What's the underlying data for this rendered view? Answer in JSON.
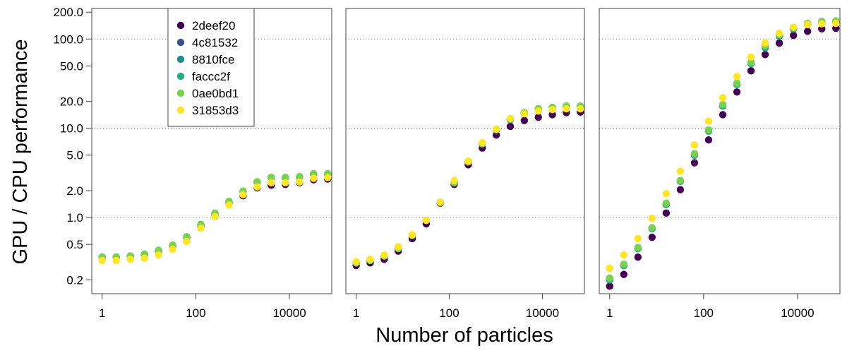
{
  "chart_data": {
    "type": "scatter",
    "ylabel": "GPU / CPU performance",
    "xlabel": "Number of particles",
    "x_scale": "log",
    "y_scale": "log",
    "xlim": [
      0.6,
      80000
    ],
    "ylim": [
      0.14,
      220
    ],
    "x_ticks": [
      1,
      100,
      10000
    ],
    "x_tick_labels": [
      "1",
      "100",
      "10000"
    ],
    "y_ticks": [
      0.2,
      0.5,
      1,
      2,
      5,
      10,
      20,
      50,
      100,
      200
    ],
    "y_tick_labels": [
      "0.2",
      "0.5",
      "1.0",
      "2.0",
      "5.0",
      "10.0",
      "20.0",
      "50.0",
      "100.0",
      "200.0"
    ],
    "reference_lines_y": [
      1,
      10,
      100
    ],
    "grid": false,
    "legend_position": "top (first panel)",
    "x": [
      1,
      2,
      4,
      8,
      16,
      32,
      64,
      128,
      256,
      512,
      1024,
      2048,
      4096,
      8192,
      16384,
      32768,
      65536
    ],
    "series_meta": [
      {
        "name": "2deef20",
        "color": "#440154"
      },
      {
        "name": "4c81532",
        "color": "#3b528b"
      },
      {
        "name": "8810fce",
        "color": "#21908d"
      },
      {
        "name": "faccc2f",
        "color": "#27ad81"
      },
      {
        "name": "0ae0bd1",
        "color": "#7ad151"
      },
      {
        "name": "31853d3",
        "color": "#fde725"
      }
    ],
    "panels": [
      {
        "series": [
          {
            "name": "2deef20",
            "values": [
              0.36,
              0.36,
              0.37,
              0.38,
              0.42,
              0.48,
              0.6,
              0.8,
              1.05,
              1.45,
              1.75,
              2.15,
              2.3,
              2.35,
              2.45,
              2.65,
              2.7
            ]
          },
          {
            "name": "4c81532",
            "values": [
              0.36,
              0.36,
              0.37,
              0.38,
              0.42,
              0.48,
              0.6,
              0.82,
              1.1,
              1.5,
              1.95,
              2.5,
              2.8,
              2.8,
              2.85,
              3.05,
              3.05
            ]
          },
          {
            "name": "8810fce",
            "values": [
              0.36,
              0.36,
              0.37,
              0.38,
              0.42,
              0.48,
              0.6,
              0.82,
              1.1,
              1.5,
              1.95,
              2.5,
              2.8,
              2.8,
              2.85,
              3.05,
              3.05
            ]
          },
          {
            "name": "faccc2f",
            "values": [
              0.36,
              0.36,
              0.37,
              0.38,
              0.42,
              0.48,
              0.6,
              0.82,
              1.1,
              1.5,
              1.95,
              2.5,
              2.8,
              2.8,
              2.85,
              3.05,
              3.05
            ]
          },
          {
            "name": "0ae0bd1",
            "values": [
              0.36,
              0.36,
              0.37,
              0.39,
              0.43,
              0.49,
              0.61,
              0.84,
              1.12,
              1.52,
              1.98,
              2.52,
              2.82,
              2.82,
              2.88,
              3.1,
              3.1
            ]
          },
          {
            "name": "31853d3",
            "values": [
              0.33,
              0.33,
              0.34,
              0.35,
              0.38,
              0.44,
              0.54,
              0.76,
              1.02,
              1.38,
              1.8,
              2.2,
              2.45,
              2.45,
              2.5,
              2.75,
              2.8
            ]
          }
        ]
      },
      {
        "series": [
          {
            "name": "2deef20",
            "values": [
              0.29,
              0.31,
              0.34,
              0.42,
              0.58,
              0.85,
              1.45,
              2.35,
              3.9,
              6.0,
              8.4,
              10.5,
              12.2,
              13.3,
              14.2,
              15.0,
              15.2
            ]
          },
          {
            "name": "4c81532",
            "values": [
              0.31,
              0.33,
              0.37,
              0.45,
              0.63,
              0.93,
              1.48,
              2.45,
              4.2,
              6.7,
              9.6,
              12.5,
              14.8,
              16.3,
              17.0,
              17.5,
              17.5
            ]
          },
          {
            "name": "8810fce",
            "values": [
              0.31,
              0.33,
              0.37,
              0.45,
              0.63,
              0.93,
              1.48,
              2.45,
              4.2,
              6.7,
              9.6,
              12.5,
              14.8,
              16.3,
              17.0,
              17.5,
              17.5
            ]
          },
          {
            "name": "faccc2f",
            "values": [
              0.31,
              0.33,
              0.37,
              0.45,
              0.63,
              0.93,
              1.48,
              2.45,
              4.2,
              6.7,
              9.6,
              12.5,
              14.8,
              16.3,
              17.0,
              17.5,
              17.5
            ]
          },
          {
            "name": "0ae0bd1",
            "values": [
              0.31,
              0.33,
              0.37,
              0.45,
              0.63,
              0.93,
              1.48,
              2.45,
              4.2,
              6.7,
              9.6,
              12.8,
              15.0,
              16.6,
              17.2,
              17.8,
              17.8
            ]
          },
          {
            "name": "31853d3",
            "values": [
              0.32,
              0.34,
              0.38,
              0.47,
              0.64,
              0.93,
              1.48,
              2.6,
              4.3,
              6.9,
              9.8,
              12.8,
              14.5,
              15.6,
              16.2,
              16.5,
              16.5
            ]
          }
        ]
      },
      {
        "series": [
          {
            "name": "2deef20",
            "values": [
              0.17,
              0.23,
              0.36,
              0.6,
              1.12,
              2.05,
              4.1,
              7.4,
              14.2,
              25.5,
              44.0,
              67.0,
              90.0,
              110.0,
              122.0,
              130.0,
              132.0
            ]
          },
          {
            "name": "4c81532",
            "values": [
              0.2,
              0.29,
              0.45,
              0.75,
              1.4,
              2.55,
              5.0,
              9.3,
              17.8,
              31.0,
              53.0,
              80.0,
              108.0,
              130.0,
              145.0,
              152.0,
              155.0
            ]
          },
          {
            "name": "8810fce",
            "values": [
              0.2,
              0.29,
              0.45,
              0.75,
              1.4,
              2.55,
              5.0,
              9.3,
              17.8,
              31.0,
              53.0,
              80.0,
              108.0,
              130.0,
              145.0,
              152.0,
              155.0
            ]
          },
          {
            "name": "faccc2f",
            "values": [
              0.2,
              0.29,
              0.45,
              0.75,
              1.4,
              2.55,
              5.0,
              9.3,
              17.8,
              31.0,
              53.0,
              80.0,
              108.0,
              130.0,
              145.0,
              152.0,
              155.0
            ]
          },
          {
            "name": "0ae0bd1",
            "values": [
              0.21,
              0.3,
              0.46,
              0.77,
              1.45,
              2.6,
              5.2,
              9.6,
              18.5,
              32.0,
              55.0,
              84.0,
              112.0,
              135.0,
              150.0,
              158.0,
              160.0
            ]
          },
          {
            "name": "31853d3",
            "values": [
              0.27,
              0.38,
              0.58,
              0.98,
              1.85,
              3.3,
              6.5,
              12.0,
              22.0,
              38.0,
              63.0,
              90.0,
              116.0,
              135.0,
              145.0,
              148.0,
              150.0
            ]
          }
        ]
      }
    ]
  }
}
